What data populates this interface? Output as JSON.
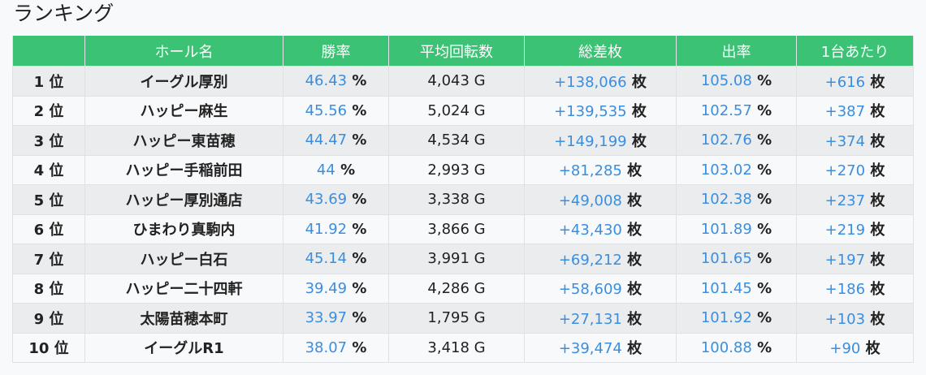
{
  "title": "ランキング",
  "colors": {
    "header_bg": "#3cc274",
    "value_blue": "#3a8ee0"
  },
  "columns": [
    "",
    "ホール名",
    "勝率",
    "平均回転数",
    "総差枚",
    "出率",
    "1台あたり"
  ],
  "rows": [
    {
      "rank": "1 位",
      "hall": "イーグル厚別",
      "win": "46.43",
      "spins": "4,043 G",
      "total": "+138,066",
      "payout": "105.08",
      "per": "+616"
    },
    {
      "rank": "2 位",
      "hall": "ハッピー麻生",
      "win": "45.56",
      "spins": "5,024 G",
      "total": "+139,535",
      "payout": "102.57",
      "per": "+387"
    },
    {
      "rank": "3 位",
      "hall": "ハッピー東苗穂",
      "win": "44.47",
      "spins": "4,534 G",
      "total": "+149,199",
      "payout": "102.76",
      "per": "+374"
    },
    {
      "rank": "4 位",
      "hall": "ハッピー手稲前田",
      "win": "44",
      "spins": "2,993 G",
      "total": "+81,285",
      "payout": "103.02",
      "per": "+270"
    },
    {
      "rank": "5 位",
      "hall": "ハッピー厚別通店",
      "win": "43.69",
      "spins": "3,338 G",
      "total": "+49,008",
      "payout": "102.38",
      "per": "+237"
    },
    {
      "rank": "6 位",
      "hall": "ひまわり真駒内",
      "win": "41.92",
      "spins": "3,866 G",
      "total": "+43,430",
      "payout": "101.89",
      "per": "+219"
    },
    {
      "rank": "7 位",
      "hall": "ハッピー白石",
      "win": "45.14",
      "spins": "3,991 G",
      "total": "+69,212",
      "payout": "101.65",
      "per": "+197"
    },
    {
      "rank": "8 位",
      "hall": "ハッピー二十四軒",
      "win": "39.49",
      "spins": "4,286 G",
      "total": "+58,609",
      "payout": "101.45",
      "per": "+186"
    },
    {
      "rank": "9 位",
      "hall": "太陽苗穂本町",
      "win": "33.97",
      "spins": "1,795 G",
      "total": "+27,131",
      "payout": "101.92",
      "per": "+103"
    },
    {
      "rank": "10 位",
      "hall": "イーグルR1",
      "win": "38.07",
      "spins": "3,418 G",
      "total": "+39,474",
      "payout": "100.88",
      "per": "+90"
    }
  ],
  "units": {
    "percent": "%",
    "coins": "枚"
  }
}
